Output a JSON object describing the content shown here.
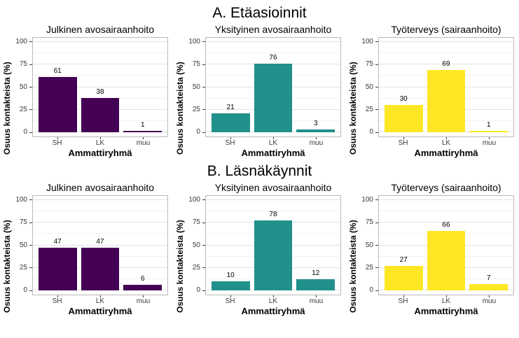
{
  "page": {
    "section_a_title": "A. Etäasioinnit",
    "section_b_title": "B. Läsnäkäynnit"
  },
  "style": {
    "purple": "#440154",
    "teal": "#21918c",
    "yellow": "#fde725",
    "gridline_major": "#e3e3e3",
    "gridline_minor": "#f1f1f1",
    "panel_border": "#b9b9b9"
  },
  "chart_data": [
    {
      "type": "bar",
      "panel": "A",
      "title": "Julkinen avosairaanhoito",
      "categories": [
        "SH",
        "LK",
        "muu"
      ],
      "values": [
        61,
        38,
        1
      ],
      "bar_color": "#440154",
      "xlabel": "Ammattiryhmä",
      "ylabel": "Osuus kontakteista (%)",
      "yticks": [
        0,
        25,
        50,
        75,
        100
      ],
      "ylim": [
        0,
        100
      ],
      "grid": true,
      "value_labels": true
    },
    {
      "type": "bar",
      "panel": "A",
      "title": "Yksityinen avosairaanhoito",
      "categories": [
        "SH",
        "LK",
        "muu"
      ],
      "values": [
        21,
        76,
        3
      ],
      "bar_color": "#21918c",
      "xlabel": "Ammattiryhmä",
      "ylabel": "Osuus kontakteista (%)",
      "yticks": [
        0,
        25,
        50,
        75,
        100
      ],
      "ylim": [
        0,
        100
      ],
      "grid": true,
      "value_labels": true
    },
    {
      "type": "bar",
      "panel": "A",
      "title": "Työterveys (sairaanhoito)",
      "categories": [
        "SH",
        "LK",
        "muu"
      ],
      "values": [
        30,
        69,
        1
      ],
      "bar_color": "#fde725",
      "xlabel": "Ammattiryhmä",
      "ylabel": "Osuus kontakteista (%)",
      "yticks": [
        0,
        25,
        50,
        75,
        100
      ],
      "ylim": [
        0,
        100
      ],
      "grid": true,
      "value_labels": true
    },
    {
      "type": "bar",
      "panel": "B",
      "title": "Julkinen avosairaanhoito",
      "categories": [
        "SH",
        "LK",
        "muu"
      ],
      "values": [
        47,
        47,
        6
      ],
      "bar_color": "#440154",
      "xlabel": "Ammattiryhmä",
      "ylabel": "Osuus kontakteista (%)",
      "yticks": [
        0,
        25,
        50,
        75,
        100
      ],
      "ylim": [
        0,
        100
      ],
      "grid": true,
      "value_labels": true
    },
    {
      "type": "bar",
      "panel": "B",
      "title": "Yksityinen avosairaanhoito",
      "categories": [
        "SH",
        "LK",
        "muu"
      ],
      "values": [
        10,
        78,
        12
      ],
      "bar_color": "#21918c",
      "xlabel": "Ammattiryhmä",
      "ylabel": "Osuus kontakteista (%)",
      "yticks": [
        0,
        25,
        50,
        75,
        100
      ],
      "ylim": [
        0,
        100
      ],
      "grid": true,
      "value_labels": true
    },
    {
      "type": "bar",
      "panel": "B",
      "title": "Työterveys (sairaanhoito)",
      "categories": [
        "SH",
        "LK",
        "muu"
      ],
      "values": [
        27,
        66,
        7
      ],
      "bar_color": "#fde725",
      "xlabel": "Ammattiryhmä",
      "ylabel": "Osuus kontakteista (%)",
      "yticks": [
        0,
        25,
        50,
        75,
        100
      ],
      "ylim": [
        0,
        100
      ],
      "grid": true,
      "value_labels": true
    }
  ]
}
